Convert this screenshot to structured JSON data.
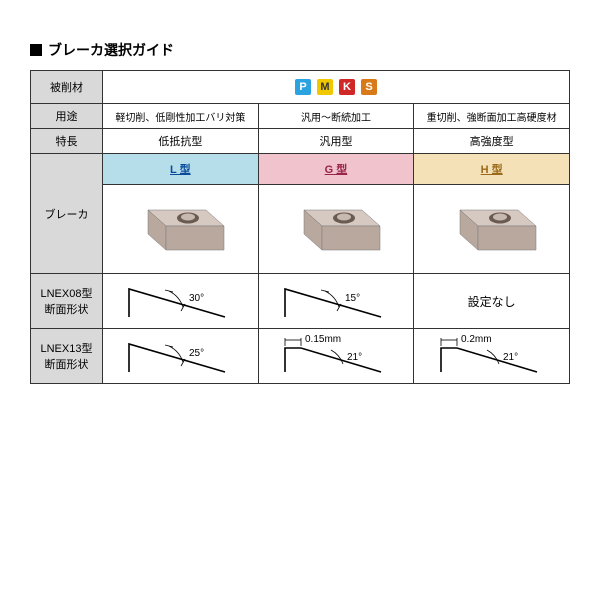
{
  "title": "ブレーカ選択ガイド",
  "row_labels": {
    "material": "被削材",
    "usage": "用途",
    "feature": "特長",
    "breaker": "ブレーカ",
    "lnex08": "LNEX08型\n断面形状",
    "lnex13": "LNEX13型\n断面形状"
  },
  "material_badges": [
    {
      "letter": "P",
      "bg": "#2aa3e0"
    },
    {
      "letter": "M",
      "bg": "#f0c800",
      "text": "#333"
    },
    {
      "letter": "K",
      "bg": "#d02828"
    },
    {
      "letter": "S",
      "bg": "#d97a1a"
    }
  ],
  "columns": [
    {
      "usage": "軽切削、低剛性加工バリ対策",
      "feature": "低抵抗型",
      "type_label": "L 型",
      "type_bg": "#b5ddea",
      "type_color": "#0a4a9a",
      "lnex08": {
        "angle": "30°",
        "land_mm": null
      },
      "lnex13": {
        "angle": "25°",
        "land_mm": null
      }
    },
    {
      "usage": "汎用～断続加工",
      "feature": "汎用型",
      "type_label": "G 型",
      "type_bg": "#f0c3cd",
      "type_color": "#9a234a",
      "lnex08": {
        "angle": "15°",
        "land_mm": null
      },
      "lnex13": {
        "angle": "21°",
        "land_mm": "0.15mm"
      }
    },
    {
      "usage": "重切削、強断面加工高硬度材",
      "feature": "高強度型",
      "type_label": "H 型",
      "type_bg": "#f4e1b8",
      "type_color": "#9a6a1a",
      "lnex08": null,
      "lnex08_text": "設定なし",
      "lnex13": {
        "angle": "21°",
        "land_mm": "0.2mm"
      }
    }
  ],
  "insert_colors": {
    "top": "#d6c9c2",
    "side": "#b8a89e",
    "hole": "#6b5a50"
  },
  "shape_stroke": "#000"
}
